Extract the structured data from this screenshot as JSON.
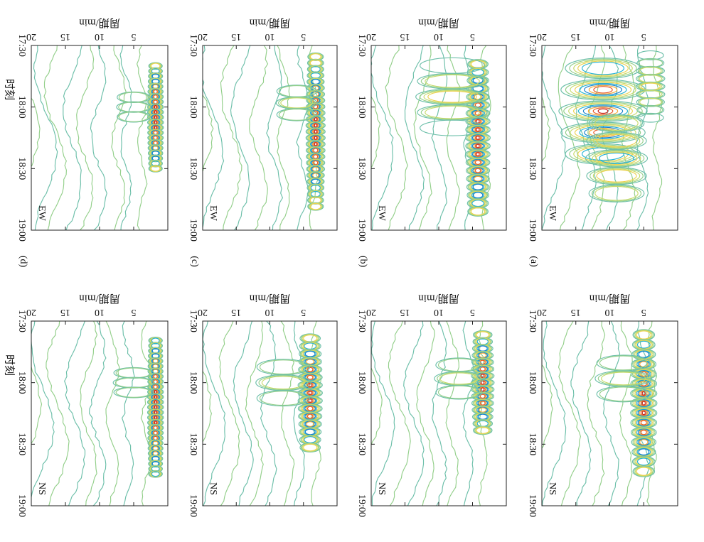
{
  "figure": {
    "period_axis_label": "周期/min",
    "time_axis_label": "时刻"
  },
  "chart_data": [
    {
      "type": "heatmap",
      "panel_label": "(a)",
      "component": "EW",
      "x": {
        "label": "时刻",
        "ticks": [
          "17:30",
          "18:00",
          "18:30",
          "19:00"
        ],
        "range_minutes": [
          0,
          90
        ]
      },
      "y": {
        "label": "周期/min",
        "ticks": [
          5,
          10,
          15,
          20
        ],
        "range": [
          0,
          20
        ]
      },
      "features": [
        {
          "center_time_min": 32,
          "center_period_min": 11,
          "spread_time_min": 26,
          "spread_period_min": 5,
          "strength": 1.0
        },
        {
          "center_time_min": 55,
          "center_period_min": 9,
          "spread_time_min": 20,
          "spread_period_min": 4,
          "strength": 0.6
        },
        {
          "center_time_min": 20,
          "center_period_min": 4,
          "spread_time_min": 15,
          "spread_period_min": 2,
          "strength": 0.4
        }
      ]
    },
    {
      "type": "heatmap",
      "panel_label": "(b)",
      "component": "EW",
      "x": {
        "label": "时刻",
        "ticks": [
          "17:30",
          "18:00",
          "18:30",
          "19:00"
        ],
        "range_minutes": [
          0,
          90
        ]
      },
      "y": {
        "label": "周期/min",
        "ticks": [
          5,
          10,
          15,
          20
        ],
        "range": [
          0,
          20
        ]
      },
      "features": [
        {
          "center_time_min": 45,
          "center_period_min": 4.2,
          "spread_time_min": 40,
          "spread_period_min": 1.4,
          "strength": 1.0
        },
        {
          "center_time_min": 25,
          "center_period_min": 8,
          "spread_time_min": 14,
          "spread_period_min": 5,
          "strength": 0.45
        }
      ]
    },
    {
      "type": "heatmap",
      "panel_label": "(c)",
      "component": "EW",
      "x": {
        "label": "时刻",
        "ticks": [
          "17:30",
          "18:00",
          "18:30",
          "19:00"
        ],
        "range_minutes": [
          0,
          90
        ]
      },
      "y": {
        "label": "周期/min",
        "ticks": [
          5,
          10,
          15,
          20
        ],
        "range": [
          0,
          20
        ]
      },
      "features": [
        {
          "center_time_min": 42,
          "center_period_min": 3.2,
          "spread_time_min": 38,
          "spread_period_min": 1.1,
          "strength": 1.0
        },
        {
          "center_time_min": 28,
          "center_period_min": 6,
          "spread_time_min": 10,
          "spread_period_min": 3,
          "strength": 0.3
        }
      ]
    },
    {
      "type": "heatmap",
      "panel_label": "(d)",
      "component": "EW",
      "x": {
        "label": "时刻",
        "ticks": [
          "17:30",
          "18:00",
          "18:30",
          "19:00"
        ],
        "range_minutes": [
          0,
          90
        ]
      },
      "y": {
        "label": "周期/min",
        "ticks": [
          5,
          10,
          15,
          20
        ],
        "range": [
          0,
          20
        ]
      },
      "features": [
        {
          "center_time_min": 35,
          "center_period_min": 1.8,
          "spread_time_min": 30,
          "spread_period_min": 0.9,
          "strength": 1.0
        },
        {
          "center_time_min": 30,
          "center_period_min": 5,
          "spread_time_min": 8,
          "spread_period_min": 2.5,
          "strength": 0.25
        }
      ]
    },
    {
      "type": "heatmap",
      "panel_label": "",
      "component": "NS",
      "x": {
        "label": "时刻",
        "ticks": [
          "17:30",
          "18:00",
          "18:30",
          "19:00"
        ],
        "range_minutes": [
          0,
          90
        ]
      },
      "y": {
        "label": "周期/min",
        "ticks": [
          5,
          10,
          15,
          20
        ],
        "range": [
          0,
          20
        ]
      },
      "features": [
        {
          "center_time_min": 40,
          "center_period_min": 5,
          "spread_time_min": 35,
          "spread_period_min": 1.5,
          "strength": 1.0
        },
        {
          "center_time_min": 28,
          "center_period_min": 8,
          "spread_time_min": 10,
          "spread_period_min": 4,
          "strength": 0.35
        }
      ]
    },
    {
      "type": "heatmap",
      "panel_label": "",
      "component": "NS",
      "x": {
        "label": "时刻",
        "ticks": [
          "17:30",
          "18:00",
          "18:30",
          "19:00"
        ],
        "range_minutes": [
          0,
          90
        ]
      },
      "y": {
        "label": "周期/min",
        "ticks": [
          5,
          10,
          15,
          20
        ],
        "range": [
          0,
          20
        ]
      },
      "features": [
        {
          "center_time_min": 30,
          "center_period_min": 3.5,
          "spread_time_min": 25,
          "spread_period_min": 1.3,
          "strength": 1.0
        },
        {
          "center_time_min": 28,
          "center_period_min": 7,
          "spread_time_min": 9,
          "spread_period_min": 3.5,
          "strength": 0.35
        }
      ]
    },
    {
      "type": "heatmap",
      "panel_label": "",
      "component": "NS",
      "x": {
        "label": "时刻",
        "ticks": [
          "17:30",
          "18:00",
          "18:30",
          "19:00"
        ],
        "range_minutes": [
          0,
          90
        ]
      },
      "y": {
        "label": "周期/min",
        "ticks": [
          5,
          10,
          15,
          20
        ],
        "range": [
          0,
          20
        ]
      },
      "features": [
        {
          "center_time_min": 35,
          "center_period_min": 4,
          "spread_time_min": 30,
          "spread_period_min": 1.4,
          "strength": 1.0
        },
        {
          "center_time_min": 30,
          "center_period_min": 8,
          "spread_time_min": 12,
          "spread_period_min": 4,
          "strength": 0.3
        }
      ]
    },
    {
      "type": "heatmap",
      "panel_label": "",
      "component": "NS",
      "x": {
        "label": "时刻",
        "ticks": [
          "17:30",
          "18:00",
          "18:30",
          "19:00"
        ],
        "range_minutes": [
          0,
          90
        ]
      },
      "y": {
        "label": "周期/min",
        "ticks": [
          5,
          10,
          15,
          20
        ],
        "range": [
          0,
          20
        ]
      },
      "features": [
        {
          "center_time_min": 42,
          "center_period_min": 1.8,
          "spread_time_min": 40,
          "spread_period_min": 0.9,
          "strength": 1.0
        },
        {
          "center_time_min": 30,
          "center_period_min": 5,
          "spread_time_min": 8,
          "spread_period_min": 3,
          "strength": 0.25
        }
      ]
    }
  ],
  "colors": {
    "levels": [
      "#6cbfa9",
      "#93cf8a",
      "#c6da6a",
      "#ecd250",
      "#25b3d3",
      "#1a82cc",
      "#f3a838",
      "#e55a2b",
      "#c6281f"
    ]
  }
}
